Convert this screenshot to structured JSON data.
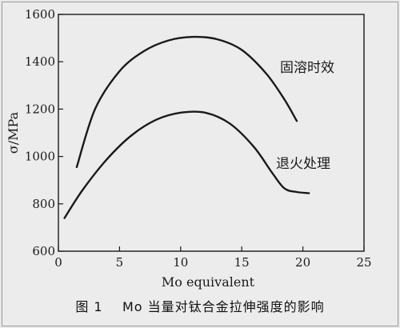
{
  "chart_data": {
    "type": "line",
    "xlabel": "Mo equivalent",
    "ylabel": "σ/MPa",
    "xlim": [
      0,
      25
    ],
    "ylim": [
      600,
      1600
    ],
    "xticks": [
      0,
      5,
      10,
      15,
      20,
      25
    ],
    "yticks": [
      600,
      800,
      1000,
      1200,
      1400,
      1600
    ],
    "grid": false,
    "series": [
      {
        "name": "固溶时效",
        "x": [
          1.5,
          3,
          5,
          7,
          9,
          11,
          13,
          15,
          17,
          18.5,
          19.5
        ],
        "y": [
          955,
          1200,
          1360,
          1445,
          1490,
          1505,
          1495,
          1450,
          1350,
          1240,
          1150
        ]
      },
      {
        "name": "退火处理",
        "x": [
          0.5,
          2,
          4,
          6,
          8,
          10,
          12,
          14,
          16,
          17.5,
          18.5,
          19.5,
          20.5
        ],
        "y": [
          740,
          860,
          990,
          1090,
          1155,
          1185,
          1185,
          1140,
          1040,
          930,
          865,
          850,
          845
        ]
      }
    ]
  },
  "caption": {
    "figure_label": "图 1",
    "text": "Mo 当量对钛合金拉伸强度的影响"
  }
}
